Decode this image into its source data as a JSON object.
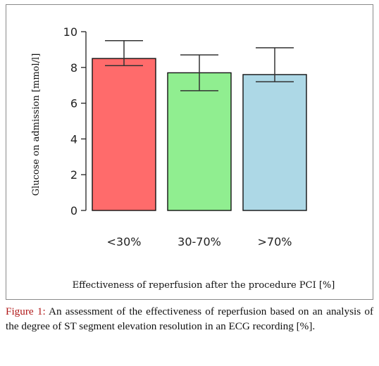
{
  "chart_data": {
    "type": "bar",
    "categories": [
      "<30%",
      "30-70%",
      ">70%"
    ],
    "values": [
      8.5,
      7.7,
      7.6
    ],
    "error_bars": [
      {
        "low": 8.1,
        "high": 9.5
      },
      {
        "low": 6.7,
        "high": 8.7
      },
      {
        "low": 7.2,
        "high": 9.1
      }
    ],
    "colors": [
      "#ff6b6b",
      "#90ee90",
      "#add8e6"
    ],
    "ylabel": "Glucose on admission [mmol/l]",
    "xlabel": "Effectiveness of reperfusion after the procedure PCI [%]",
    "ylim": [
      0,
      10
    ],
    "yticks": [
      0,
      2,
      4,
      6,
      8,
      10
    ],
    "grid": false
  },
  "caption": {
    "label": "Figure 1:",
    "text": " An assessment of the effectiveness of reperfusion based on an analysis of the degree of ST segment elevation resolution in an ECG recording [%]."
  }
}
